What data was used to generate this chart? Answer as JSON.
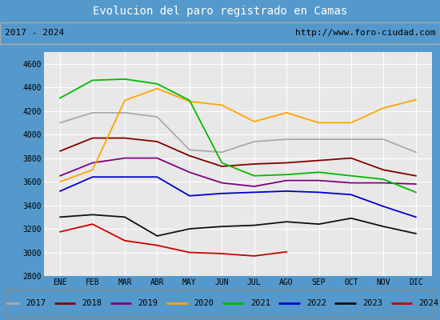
{
  "title": "Evolucion del paro registrado en Camas",
  "subtitle_left": "2017 - 2024",
  "subtitle_right": "http://www.foro-ciudad.com",
  "xlabel_months": [
    "ENE",
    "FEB",
    "MAR",
    "ABR",
    "MAY",
    "JUN",
    "JUL",
    "AGO",
    "SEP",
    "OCT",
    "NOV",
    "DIC"
  ],
  "ylim": [
    2800,
    4700
  ],
  "yticks": [
    2800,
    3000,
    3200,
    3400,
    3600,
    3800,
    4000,
    4200,
    4400,
    4600
  ],
  "series": {
    "2017": {
      "color": "#aaaaaa",
      "data": [
        4100,
        4185,
        4185,
        4150,
        3870,
        3850,
        3940,
        3960,
        3960,
        3960,
        3960,
        3850
      ]
    },
    "2018": {
      "color": "#800000",
      "data": [
        3860,
        3970,
        3970,
        3940,
        3820,
        3730,
        3750,
        3760,
        3780,
        3800,
        3700,
        3650
      ]
    },
    "2019": {
      "color": "#800080",
      "data": [
        3650,
        3760,
        3800,
        3800,
        3680,
        3590,
        3560,
        3610,
        3610,
        3590,
        3590,
        3580
      ]
    },
    "2020": {
      "color": "#ffa500",
      "data": [
        3600,
        3700,
        4290,
        4390,
        4280,
        4250,
        4110,
        4185,
        4100,
        4100,
        4225,
        4295
      ]
    },
    "2021": {
      "color": "#00bb00",
      "data": [
        4310,
        4460,
        4470,
        4430,
        4290,
        3760,
        3650,
        3660,
        3680,
        3650,
        3620,
        3510
      ]
    },
    "2022": {
      "color": "#0000cc",
      "data": [
        3520,
        3640,
        3640,
        3640,
        3480,
        3500,
        3510,
        3520,
        3510,
        3490,
        3390,
        3300
      ]
    },
    "2023": {
      "color": "#111111",
      "data": [
        3300,
        3320,
        3300,
        3140,
        3200,
        3220,
        3230,
        3260,
        3240,
        3290,
        3220,
        3160
      ]
    },
    "2024": {
      "color": "#cc0000",
      "data": [
        3175,
        3240,
        3100,
        3060,
        3000,
        2990,
        2970,
        3005,
        null,
        null,
        null,
        null
      ]
    }
  },
  "plot_bg_color": "#e8e8e8",
  "title_bg_color": "#5599cc",
  "title_text_color": "white",
  "subtitle_bg_color": "#f0f0f0",
  "subtitle_border_color": "#aaaaaa",
  "grid_color": "white",
  "outer_bg_color": "#5599cc"
}
